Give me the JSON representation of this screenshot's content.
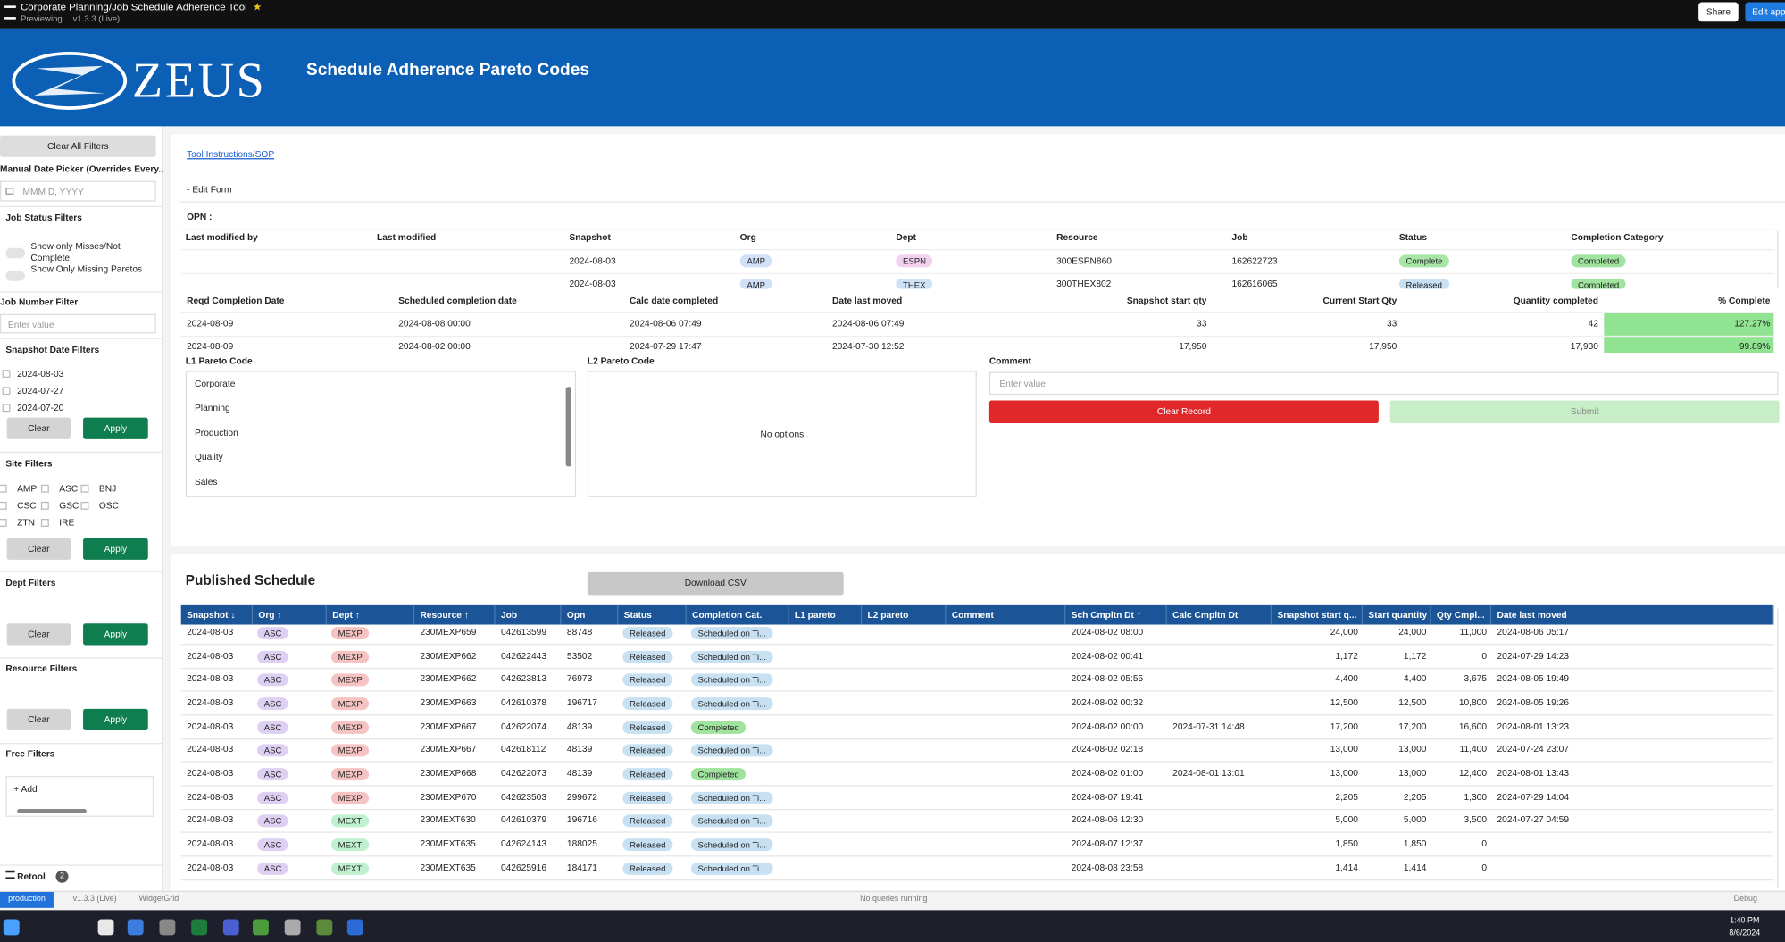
{
  "topbar": {
    "app_title": "Corporate Planning/Job Schedule Adherence Tool",
    "preview": "Previewing",
    "version": "v1.3.3 (Live)",
    "share": "Share",
    "edit": "Edit app"
  },
  "header": {
    "logo": "ZEUS",
    "title": "Schedule Adherence Pareto Codes"
  },
  "sidebar": {
    "clear_all": "Clear All Filters",
    "date_picker_label": "Manual Date Picker (Overrides Every...",
    "date_placeholder": "MMM D, YYYY",
    "job_status_title": "Job Status Filters",
    "toggles": [
      "Show only Misses/Not Complete",
      "Show Only Missing Paretos"
    ],
    "job_number_title": "Job Number Filter",
    "job_number_placeholder": "Enter value",
    "snapshot_title": "Snapshot Date Filters",
    "snapshot_dates": [
      "2024-08-03",
      "2024-07-27",
      "2024-07-20"
    ],
    "site_title": "Site Filters",
    "sites": [
      "AMP",
      "ASC",
      "BNJ",
      "CSC",
      "GSC",
      "OSC",
      "ZTN",
      "IRE"
    ],
    "dept_title": "Dept Filters",
    "resource_title": "Resource Filters",
    "free_title": "Free Filters",
    "add": "+ Add",
    "clear": "Clear",
    "apply": "Apply",
    "retool": "Retool",
    "badge": "2"
  },
  "form": {
    "link": "Tool Instructions/SOP",
    "edit_form": "- Edit Form",
    "opn": "OPN :",
    "record_table": {
      "columns": [
        "Last modified by",
        "Last modified",
        "Snapshot",
        "Org",
        "Dept",
        "Resource",
        "Job",
        "Status",
        "Completion Category"
      ],
      "rows": [
        [
          null,
          null,
          "2024-08-03",
          "AMP",
          "ESPN",
          "300ESPN860",
          "162622723",
          "Complete",
          "Completed"
        ],
        [
          null,
          null,
          "2024-08-03",
          "AMP",
          "THEX",
          "300THEX802",
          "162616065",
          "Released",
          "Completed"
        ]
      ]
    },
    "quantity_table": {
      "columns": [
        "Reqd Completion Date",
        "Scheduled completion date",
        "Calc date completed",
        "Date last moved",
        "Snapshot start qty",
        "Current Start Qty",
        "Quantity completed",
        "% Complete"
      ],
      "rows": [
        [
          "2024-08-09",
          "2024-08-08 00:00",
          "2024-08-06 07:49",
          "2024-08-06 07:49",
          "33",
          "33",
          "42",
          "127.27%"
        ],
        [
          "2024-08-09",
          "2024-08-02 00:00",
          "2024-07-29 17:47",
          "2024-07-30 12:52",
          "17,950",
          "17,950",
          "17,930",
          "99.89%"
        ]
      ]
    },
    "l1_label": "L1 Pareto Code",
    "l1_options": [
      "Corporate",
      "Planning",
      "Production",
      "Quality",
      "Sales"
    ],
    "l2_label": "L2 Pareto Code",
    "l2_empty": "No options",
    "comment_label": "Comment",
    "comment_placeholder": "Enter value",
    "clear_record": "Clear Record",
    "submit": "Submit"
  },
  "schedule": {
    "title": "Published Schedule",
    "download": "Download CSV",
    "columns": [
      "Snapshot ↓",
      "Org ↑",
      "Dept ↑",
      "Resource ↑",
      "Job",
      "Opn",
      "Status",
      "Completion Cat.",
      "L1 pareto",
      "L2 pareto",
      "Comment",
      "Sch Cmpltn Dt ↑",
      "Calc Cmpltn Dt",
      "Snapshot start q...",
      "Start quantity",
      "Qty Cmpl...",
      "Date last moved"
    ],
    "rows": [
      [
        "2024-08-03",
        "ASC",
        "MEXP",
        "230MEXP659",
        "042613599",
        "88748",
        "Released",
        "Scheduled on Ti...",
        null,
        null,
        null,
        "2024-08-02 08:00",
        null,
        "24,000",
        "24,000",
        "11,000",
        "2024-08-06 05:17"
      ],
      [
        "2024-08-03",
        "ASC",
        "MEXP",
        "230MEXP662",
        "042622443",
        "53502",
        "Released",
        "Scheduled on Ti...",
        null,
        null,
        null,
        "2024-08-02 00:41",
        null,
        "1,172",
        "1,172",
        "0",
        "2024-07-29 14:23"
      ],
      [
        "2024-08-03",
        "ASC",
        "MEXP",
        "230MEXP662",
        "042623813",
        "76973",
        "Released",
        "Scheduled on Ti...",
        null,
        null,
        null,
        "2024-08-02 05:55",
        null,
        "4,400",
        "4,400",
        "3,675",
        "2024-08-05 19:49"
      ],
      [
        "2024-08-03",
        "ASC",
        "MEXP",
        "230MEXP663",
        "042610378",
        "196717",
        "Released",
        "Scheduled on Ti...",
        null,
        null,
        null,
        "2024-08-02 00:32",
        null,
        "12,500",
        "12,500",
        "10,800",
        "2024-08-05 19:26"
      ],
      [
        "2024-08-03",
        "ASC",
        "MEXP",
        "230MEXP667",
        "042622074",
        "48139",
        "Released",
        "Completed",
        null,
        null,
        null,
        "2024-08-02 00:00",
        "2024-07-31 14:48",
        "17,200",
        "17,200",
        "16,600",
        "2024-08-01 13:23"
      ],
      [
        "2024-08-03",
        "ASC",
        "MEXP",
        "230MEXP667",
        "042618112",
        "48139",
        "Released",
        "Scheduled on Ti...",
        null,
        null,
        null,
        "2024-08-02 02:18",
        null,
        "13,000",
        "13,000",
        "11,400",
        "2024-07-24 23:07"
      ],
      [
        "2024-08-03",
        "ASC",
        "MEXP",
        "230MEXP668",
        "042622073",
        "48139",
        "Released",
        "Completed",
        null,
        null,
        null,
        "2024-08-02 01:00",
        "2024-08-01 13:01",
        "13,000",
        "13,000",
        "12,400",
        "2024-08-01 13:43"
      ],
      [
        "2024-08-03",
        "ASC",
        "MEXP",
        "230MEXP670",
        "042623503",
        "299672",
        "Released",
        "Scheduled on Ti...",
        null,
        null,
        null,
        "2024-08-07 19:41",
        null,
        "2,205",
        "2,205",
        "1,300",
        "2024-07-29 14:04"
      ],
      [
        "2024-08-03",
        "ASC",
        "MEXT",
        "230MEXT630",
        "042610379",
        "196716",
        "Released",
        "Scheduled on Ti...",
        null,
        null,
        null,
        "2024-08-06 12:30",
        null,
        "5,000",
        "5,000",
        "3,500",
        "2024-07-27 04:59"
      ],
      [
        "2024-08-03",
        "ASC",
        "MEXT",
        "230MEXT635",
        "042624143",
        "188025",
        "Released",
        "Scheduled on Ti...",
        null,
        null,
        null,
        "2024-08-07 12:37",
        null,
        "1,850",
        "1,850",
        "0",
        null
      ],
      [
        "2024-08-03",
        "ASC",
        "MEXT",
        "230MEXT635",
        "042625916",
        "184171",
        "Released",
        "Scheduled on Ti...",
        null,
        null,
        null,
        "2024-08-08 23:58",
        null,
        "1,414",
        "1,414",
        "0",
        null
      ]
    ]
  },
  "tag_colors": {
    "AMP": "#cfe0f7",
    "ASC": "#ddd0f3",
    "ESPN": "#f3d0ee",
    "THEX": "#cde3f5",
    "MEXP": "#f6c3c3",
    "MEXT": "#bff0cf",
    "Complete": "#a8e6a8",
    "Completed": "#9fe39f",
    "Released": "#c7e1f3",
    "Scheduled on Ti...": "#c7e1f3"
  },
  "statusbar": {
    "env": "production",
    "version": "v1.3.3 (Live)",
    "widget": "WidgetGrid",
    "queries": "No queries running",
    "debug": "Debug"
  },
  "taskbar": {
    "time": "1:40 PM",
    "date": "8/6/2024"
  }
}
